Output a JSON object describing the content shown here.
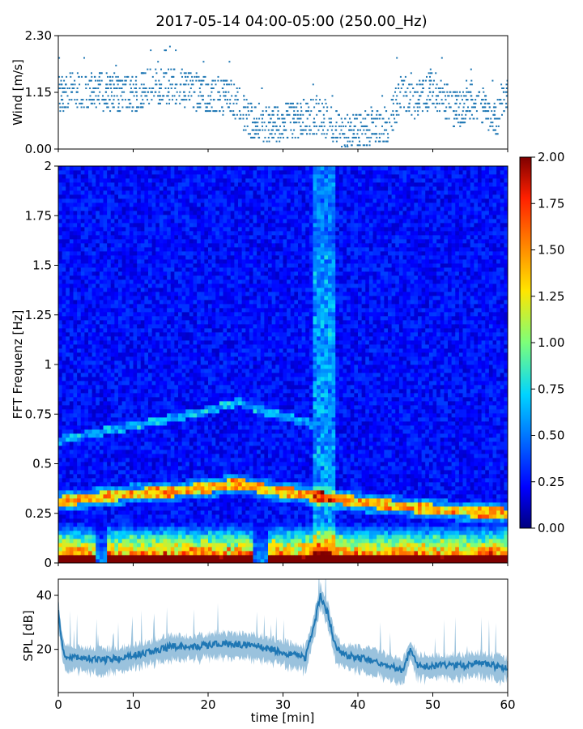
{
  "title": "2017-05-14 04:00-05:00 (250.00_Hz)",
  "colors": {
    "series": "#1f77b4",
    "axis": "#000000",
    "colormap": [
      "#00007f",
      "#0000ff",
      "#00d4ff",
      "#7dff7a",
      "#ffe500",
      "#ff4500",
      "#7f0000"
    ]
  },
  "chart_data": [
    {
      "id": "wind",
      "type": "scatter",
      "ylabel": "Wind [m/s]",
      "xlim": [
        0,
        60
      ],
      "ylim": [
        0,
        2.3
      ],
      "yticks": [
        "0.00",
        "1.15",
        "2.30"
      ],
      "x_extent_min": [
        0,
        60
      ],
      "trend": {
        "x": [
          0,
          5,
          10,
          13,
          16,
          20,
          23,
          26,
          29,
          32,
          35,
          38,
          41,
          44,
          46,
          48,
          50,
          53,
          56,
          58,
          60
        ],
        "y": [
          1.15,
          1.2,
          1.1,
          1.3,
          1.25,
          1.1,
          1.05,
          0.55,
          0.5,
          0.6,
          0.7,
          0.35,
          0.45,
          0.5,
          1.2,
          0.95,
          1.2,
          0.8,
          1.0,
          0.5,
          1.1
        ]
      },
      "max_value": 2.3
    },
    {
      "id": "spectrogram",
      "type": "heatmap",
      "ylabel": "FFT Frequenz [Hz]",
      "xlim": [
        0,
        60
      ],
      "ylim": [
        0,
        2
      ],
      "yticks": [
        "0",
        "0.25",
        "0.5",
        "0.75",
        "1",
        "1.25",
        "1.5",
        "1.75",
        "2"
      ],
      "colorbar": {
        "range": [
          0,
          2
        ],
        "ticks": [
          "0.00",
          "0.25",
          "0.50",
          "0.75",
          "1.00",
          "1.25",
          "1.50",
          "1.75",
          "2.00"
        ]
      },
      "dominant_line_hz": {
        "x": [
          0,
          5,
          10,
          15,
          20,
          24,
          28,
          32,
          36,
          40,
          45,
          50,
          55,
          60
        ],
        "y": [
          0.31,
          0.33,
          0.35,
          0.36,
          0.38,
          0.4,
          0.37,
          0.35,
          0.33,
          0.31,
          0.29,
          0.27,
          0.26,
          0.25
        ]
      },
      "secondary_line_hz": {
        "x": [
          0,
          10,
          20,
          24,
          28,
          34
        ],
        "y": [
          0.62,
          0.69,
          0.77,
          0.81,
          0.76,
          0.7
        ]
      },
      "broadband_event_min": [
        34,
        37
      ]
    },
    {
      "id": "spl",
      "type": "line",
      "ylabel": "SPL [dB]",
      "xlabel": "time [min]",
      "xlim": [
        0,
        60
      ],
      "ylim": [
        4,
        46
      ],
      "yticks": [
        "20",
        "40"
      ],
      "xticks": [
        "0",
        "10",
        "20",
        "30",
        "40",
        "50",
        "60"
      ],
      "x": [
        0,
        0.5,
        1,
        3,
        6,
        9,
        12,
        15,
        18,
        21,
        24,
        27,
        30,
        33,
        34,
        35,
        36,
        37,
        38,
        40,
        42,
        44,
        46,
        47,
        48,
        50,
        52,
        54,
        56,
        58,
        60
      ],
      "y": [
        34,
        22,
        17,
        17,
        16,
        17,
        19,
        21,
        21,
        22,
        22,
        21,
        19,
        17,
        27,
        40,
        33,
        21,
        18,
        17,
        16,
        14,
        12,
        20,
        14,
        14,
        14,
        14,
        15,
        14,
        13
      ]
    }
  ]
}
